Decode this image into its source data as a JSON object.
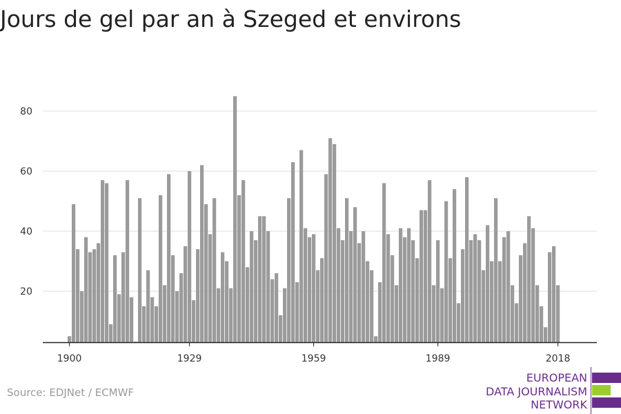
{
  "title": "Jours de gel par an à Szeged et environs",
  "source": "Source: EDJNet / ECMWF",
  "logo": {
    "lines": [
      "EUROPEAN",
      "DATA JOURNALISM",
      "NETWORK"
    ],
    "colors": [
      "#6a2c8c",
      "#9acd32",
      "#6a2c8c"
    ]
  },
  "colors": {
    "bar": "#9b9b9b",
    "grid": "#dddddd",
    "axis": "#222222"
  },
  "chart_data": {
    "type": "bar",
    "x": [
      1900,
      1901,
      1902,
      1903,
      1904,
      1905,
      1906,
      1907,
      1908,
      1909,
      1910,
      1911,
      1912,
      1913,
      1914,
      1915,
      1916,
      1917,
      1918,
      1919,
      1920,
      1921,
      1922,
      1923,
      1924,
      1925,
      1926,
      1927,
      1928,
      1929,
      1930,
      1931,
      1932,
      1933,
      1934,
      1935,
      1936,
      1937,
      1938,
      1939,
      1940,
      1941,
      1942,
      1943,
      1944,
      1945,
      1946,
      1947,
      1948,
      1949,
      1950,
      1951,
      1952,
      1953,
      1954,
      1955,
      1956,
      1957,
      1958,
      1959,
      1960,
      1961,
      1962,
      1963,
      1964,
      1965,
      1966,
      1967,
      1968,
      1969,
      1970,
      1971,
      1972,
      1973,
      1974,
      1975,
      1976,
      1977,
      1978,
      1979,
      1980,
      1981,
      1982,
      1983,
      1984,
      1985,
      1986,
      1987,
      1988,
      1989,
      1990,
      1991,
      1992,
      1993,
      1994,
      1995,
      1996,
      1997,
      1998,
      1999,
      2000,
      2001,
      2002,
      2003,
      2004,
      2005,
      2006,
      2007,
      2008,
      2009,
      2010,
      2011,
      2012,
      2013,
      2014,
      2015,
      2016,
      2017,
      2018
    ],
    "values": [
      5,
      49,
      34,
      20,
      38,
      33,
      34,
      36,
      57,
      56,
      9,
      32,
      19,
      33,
      57,
      18,
      3,
      51,
      15,
      27,
      18,
      15,
      52,
      22,
      59,
      32,
      20,
      26,
      35,
      60,
      17,
      34,
      62,
      49,
      39,
      51,
      21,
      33,
      30,
      21,
      85,
      52,
      57,
      28,
      40,
      37,
      45,
      45,
      40,
      24,
      26,
      12,
      21,
      51,
      63,
      23,
      67,
      41,
      38,
      39,
      27,
      31,
      59,
      71,
      69,
      41,
      37,
      51,
      40,
      48,
      36,
      40,
      30,
      27,
      5,
      23,
      56,
      39,
      32,
      22,
      41,
      38,
      41,
      37,
      31,
      47,
      47,
      57,
      22,
      37,
      21,
      50,
      31,
      54,
      16,
      34,
      58,
      37,
      39,
      37,
      27,
      42,
      30,
      51,
      30,
      38,
      40,
      22,
      16,
      32,
      36,
      45,
      41,
      22,
      15,
      8,
      33,
      35,
      22
    ],
    "xticks": [
      1900,
      1929,
      1959,
      1989,
      2018
    ],
    "yticks": [
      20,
      40,
      60,
      80
    ],
    "ylim": [
      3,
      90
    ],
    "xlabel": "",
    "ylabel": "",
    "grid": true
  }
}
